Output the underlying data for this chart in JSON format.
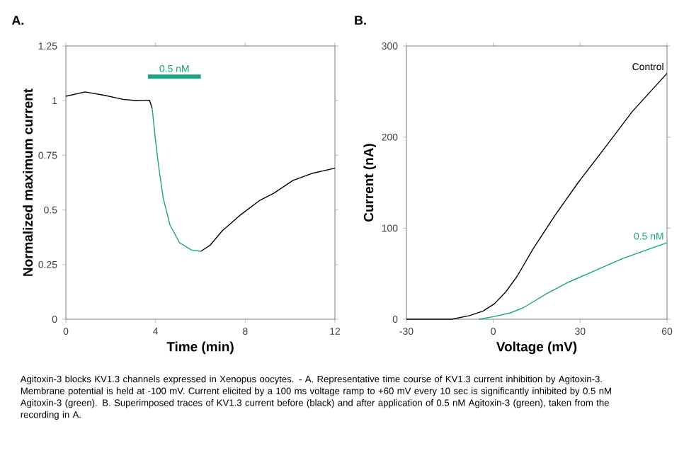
{
  "chart_data": [
    {
      "type": "line",
      "title": "A.",
      "xlabel": "Time (min)",
      "ylabel": "Normalized maximum current",
      "xlim": [
        0,
        12
      ],
      "ylim": [
        0,
        1.25
      ],
      "xticks": [
        0,
        4,
        8,
        12
      ],
      "yticks": [
        0,
        0.25,
        0.5,
        0.75,
        1,
        1.25
      ],
      "annotations": [
        {
          "text": "0.5 nM",
          "x": 4.84,
          "y": 1.11
        },
        "Agitoxin-3 blocks KV1.3 channels expressed in Xenopus oocytes. - A. Representative time course of KV1.3 current inhibition by Agitoxin-3. Membrane potential is held at -100 mV. Current elicited by a 100 ms voltage ramp to +60 mV every 10 sec is significantly inhibited by 0.5 nM Agitoxin-3 (green). B. Superimposed traces of KV1.3 current before (black) and after application of 0.5 nM Agitoxin-3 (green), taken from the recording in A."
      ],
      "series": [
        {
          "color": "#000000",
          "x": [
            0,
            0.86,
            1.7,
            2.55,
            3.18,
            3.73,
            3.85
          ],
          "values": [
            1.02,
            1.04,
            1.025,
            1.006,
            1.0,
            1.002,
            0.965
          ]
        },
        {
          "color": "#1aa385",
          "x": [
            3.85,
            3.98,
            4.13,
            4.34,
            4.65,
            5.07,
            5.6,
            6.02
          ],
          "values": [
            0.965,
            0.836,
            0.706,
            0.555,
            0.43,
            0.35,
            0.317,
            0.311
          ]
        },
        {
          "color": "#000000",
          "x": [
            6.02,
            6.44,
            6.97,
            7.81,
            8.65,
            9.28,
            10.13,
            10.97,
            12
          ],
          "values": [
            0.311,
            0.339,
            0.404,
            0.479,
            0.544,
            0.577,
            0.635,
            0.667,
            0.691
          ]
        },
        {
          "color": "#1aa385",
          "x": [
            3.66,
            6.02
          ],
          "values": [
            1.11,
            1.11
          ]
        }
      ]
    },
    {
      "type": "line",
      "title": "B.",
      "xlabel": "Voltage (mV)",
      "ylabel": "Current (nA)",
      "xlim": [
        -30,
        60
      ],
      "ylim": [
        0,
        300
      ],
      "xticks": [
        -30,
        0,
        30,
        60
      ],
      "yticks": [
        0,
        100,
        200,
        300
      ],
      "series": [
        {
          "name": "Control",
          "color": "#000000",
          "x": [
            -30,
            -14.4,
            -8.2,
            -3.5,
            0.4,
            4.3,
            8.2,
            13.7,
            21.5,
            29.3,
            38.7,
            48,
            60
          ],
          "values": [
            0,
            0,
            4,
            9,
            17,
            30,
            47,
            77,
            115,
            150,
            189,
            228,
            270
          ]
        },
        {
          "name": "0.5 nM",
          "color": "#1aa385",
          "x": [
            -5,
            0.4,
            5.9,
            10.6,
            18.4,
            26.2,
            35.5,
            44.9,
            60
          ],
          "values": [
            0,
            3,
            7,
            13,
            28,
            41,
            54,
            67,
            84
          ]
        }
      ]
    }
  ]
}
